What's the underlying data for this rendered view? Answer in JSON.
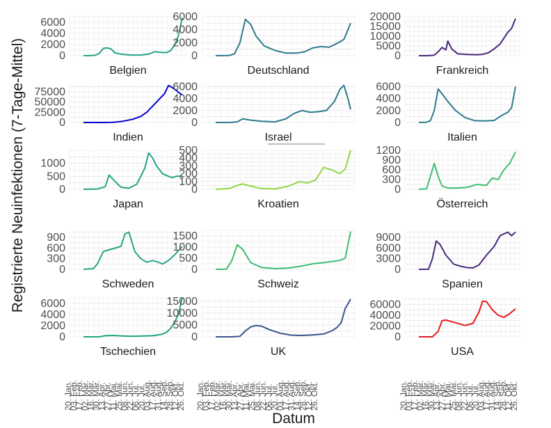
{
  "ylabel": "Registrierte Neuinfektionen (7-Tage-Mittel)",
  "xlabel": "Datum",
  "date_ticks": [
    "20. Jan.",
    "03. Feb.",
    "17. Feb.",
    "02. Mär.",
    "16. Mär.",
    "30. Mär.",
    "13. Apr.",
    "27. Apr.",
    "11. Mai.",
    "25. Mai.",
    "08. Jun.",
    "22. Jun.",
    "06. Jul.",
    "20. Jul.",
    "03. Aug.",
    "17. Aug.",
    "31. Aug.",
    "14. Sep.",
    "28. Sep.",
    "12. Okt.",
    "26. Okt."
  ],
  "chart_data": [
    {
      "type": "line",
      "title": "Belgien",
      "color": "#25a386",
      "ylim": [
        0,
        7000
      ],
      "yticks": [
        0,
        2000,
        4000,
        6000
      ],
      "ytick_labels": [
        "0",
        "2000",
        "4000",
        "6000"
      ],
      "x": [
        0,
        0.06,
        0.12,
        0.16,
        0.2,
        0.24,
        0.28,
        0.32,
        0.36,
        0.42,
        0.5,
        0.58,
        0.66,
        0.72,
        0.78,
        0.84,
        0.88,
        0.92,
        0.96,
        1.0
      ],
      "y": [
        0,
        0,
        80,
        400,
        1300,
        1400,
        1200,
        500,
        350,
        200,
        100,
        120,
        300,
        700,
        600,
        550,
        900,
        1800,
        3500,
        6800
      ]
    },
    {
      "type": "line",
      "title": "Deutschland",
      "color": "#2c7a8a",
      "ylim": [
        0,
        6000
      ],
      "yticks": [
        0,
        2000,
        4000,
        6000
      ],
      "ytick_labels": [
        "0",
        "2000",
        "4000",
        "6000"
      ],
      "x": [
        0,
        0.1,
        0.14,
        0.18,
        0.22,
        0.26,
        0.3,
        0.36,
        0.44,
        0.52,
        0.6,
        0.66,
        0.72,
        0.78,
        0.84,
        0.9,
        0.95,
        1.0
      ],
      "y": [
        0,
        20,
        300,
        2000,
        5600,
        4800,
        3000,
        1500,
        800,
        400,
        400,
        600,
        1200,
        1400,
        1300,
        1900,
        2500,
        5000
      ]
    },
    {
      "type": "line",
      "title": "Frankreich",
      "color": "#482878",
      "ylim": [
        0,
        20000
      ],
      "yticks": [
        0,
        5000,
        10000,
        15000,
        20000
      ],
      "ytick_labels": [
        "0",
        "5000",
        "10000",
        "15000",
        "20000"
      ],
      "x": [
        0,
        0.1,
        0.16,
        0.2,
        0.24,
        0.28,
        0.3,
        0.34,
        0.4,
        0.5,
        0.6,
        0.66,
        0.72,
        0.78,
        0.84,
        0.88,
        0.92,
        0.96,
        1.0
      ],
      "y": [
        0,
        0,
        300,
        2000,
        4200,
        3000,
        7500,
        3500,
        1000,
        600,
        500,
        700,
        1500,
        3500,
        6000,
        9000,
        12000,
        14000,
        19000
      ]
    },
    {
      "type": "line",
      "title": "Indien",
      "color": "#0000cd",
      "ylim": [
        0,
        95000
      ],
      "yticks": [
        0,
        25000,
        50000,
        75000
      ],
      "ytick_labels": [
        "0",
        "25000",
        "50000",
        "75000"
      ],
      "x": [
        0,
        0.2,
        0.3,
        0.4,
        0.5,
        0.58,
        0.64,
        0.7,
        0.76,
        0.82,
        0.86,
        0.9,
        0.94,
        0.97,
        1.0
      ],
      "y": [
        0,
        0,
        500,
        3000,
        8000,
        15000,
        25000,
        40000,
        55000,
        70000,
        90000,
        85000,
        78000,
        72000,
        67000
      ]
    },
    {
      "type": "line",
      "title": "Israel",
      "color": "#2c7a8a",
      "ylim": [
        0,
        6500
      ],
      "yticks": [
        0,
        2000,
        4000,
        6000
      ],
      "ytick_labels": [
        "0",
        "2000",
        "4000",
        "6000"
      ],
      "x": [
        0,
        0.1,
        0.16,
        0.2,
        0.26,
        0.34,
        0.44,
        0.52,
        0.58,
        0.64,
        0.7,
        0.76,
        0.82,
        0.88,
        0.92,
        0.95,
        0.98,
        1.0
      ],
      "y": [
        0,
        0,
        100,
        600,
        400,
        200,
        100,
        600,
        1500,
        2000,
        1700,
        1800,
        2000,
        3500,
        5500,
        6200,
        4000,
        2200
      ]
    },
    {
      "type": "line",
      "title": "Italien",
      "color": "#2c7a8a",
      "ylim": [
        0,
        6500
      ],
      "yticks": [
        0,
        2000,
        4000,
        6000
      ],
      "ytick_labels": [
        "0",
        "2000",
        "4000",
        "6000"
      ],
      "x": [
        0,
        0.08,
        0.12,
        0.16,
        0.2,
        0.24,
        0.3,
        0.38,
        0.48,
        0.58,
        0.68,
        0.78,
        0.86,
        0.92,
        0.96,
        1.0
      ],
      "y": [
        0,
        50,
        300,
        2000,
        5600,
        4800,
        3500,
        2000,
        800,
        300,
        250,
        350,
        1200,
        1700,
        2500,
        6000
      ]
    },
    {
      "type": "line",
      "title": "Japan",
      "color": "#25a386",
      "ylim": [
        0,
        1500
      ],
      "yticks": [
        0,
        500,
        1000
      ],
      "ytick_labels": [
        "0",
        "500",
        "1000"
      ],
      "x": [
        0,
        0.14,
        0.22,
        0.26,
        0.32,
        0.38,
        0.46,
        0.54,
        0.62,
        0.66,
        0.7,
        0.74,
        0.8,
        0.86,
        0.9,
        0.94,
        1.0
      ],
      "y": [
        0,
        10,
        100,
        550,
        300,
        80,
        40,
        200,
        800,
        1400,
        1200,
        900,
        600,
        500,
        450,
        500,
        500
      ]
    },
    {
      "type": "line",
      "title": "Kroatien",
      "color": "#8fd744",
      "ylim": [
        0,
        500
      ],
      "yticks": [
        0,
        100,
        200,
        300,
        400,
        500
      ],
      "ytick_labels": [
        "0",
        "100",
        "200",
        "300",
        "400",
        "500"
      ],
      "x": [
        0,
        0.1,
        0.16,
        0.2,
        0.26,
        0.34,
        0.44,
        0.54,
        0.62,
        0.68,
        0.74,
        0.8,
        0.86,
        0.92,
        0.96,
        1.0
      ],
      "y": [
        0,
        10,
        50,
        70,
        40,
        10,
        5,
        40,
        100,
        80,
        120,
        280,
        250,
        200,
        260,
        500
      ]
    },
    {
      "type": "line",
      "title": "Österreich",
      "color": "#3fbc73",
      "ylim": [
        0,
        1200
      ],
      "yticks": [
        0,
        300,
        600,
        900,
        1200
      ],
      "ytick_labels": [
        "0",
        "300",
        "600",
        "900",
        "1200"
      ],
      "x": [
        0,
        0.08,
        0.12,
        0.16,
        0.2,
        0.24,
        0.3,
        0.4,
        0.5,
        0.6,
        0.7,
        0.76,
        0.82,
        0.88,
        0.94,
        1.0
      ],
      "y": [
        0,
        10,
        400,
        800,
        400,
        100,
        40,
        40,
        60,
        150,
        120,
        350,
        300,
        600,
        800,
        1150
      ]
    },
    {
      "type": "line",
      "title": "Schweden",
      "color": "#25a386",
      "ylim": [
        0,
        1100
      ],
      "yticks": [
        0,
        300,
        600,
        900
      ],
      "ytick_labels": [
        "0",
        "300",
        "600",
        "900"
      ],
      "x": [
        0,
        0.1,
        0.14,
        0.2,
        0.26,
        0.32,
        0.38,
        0.42,
        0.46,
        0.52,
        0.58,
        0.64,
        0.7,
        0.76,
        0.8,
        0.86,
        0.92,
        1.0
      ],
      "y": [
        0,
        20,
        150,
        500,
        550,
        600,
        650,
        1000,
        1050,
        500,
        300,
        200,
        250,
        200,
        150,
        250,
        400,
        650
      ]
    },
    {
      "type": "line",
      "title": "Schweiz",
      "color": "#3fbc73",
      "ylim": [
        0,
        1750
      ],
      "yticks": [
        0,
        500,
        1000,
        1500
      ],
      "ytick_labels": [
        "0",
        "500",
        "1000",
        "1500"
      ],
      "x": [
        0,
        0.08,
        0.12,
        0.16,
        0.2,
        0.26,
        0.34,
        0.44,
        0.54,
        0.64,
        0.72,
        0.8,
        0.86,
        0.92,
        0.96,
        1.0
      ],
      "y": [
        0,
        10,
        400,
        1100,
        900,
        300,
        80,
        30,
        60,
        150,
        250,
        300,
        350,
        400,
        500,
        1700
      ]
    },
    {
      "type": "line",
      "title": "Spanien",
      "color": "#482878",
      "ylim": [
        0,
        11000
      ],
      "yticks": [
        0,
        3000,
        6000,
        9000
      ],
      "ytick_labels": [
        "0",
        "3000",
        "6000",
        "9000"
      ],
      "x": [
        0,
        0.1,
        0.14,
        0.18,
        0.22,
        0.28,
        0.36,
        0.44,
        0.5,
        0.56,
        0.62,
        0.7,
        0.78,
        0.84,
        0.88,
        0.92,
        0.96,
        1.0
      ],
      "y": [
        0,
        20,
        3000,
        8000,
        7000,
        4000,
        1500,
        800,
        500,
        400,
        1200,
        4000,
        6500,
        9500,
        10000,
        10500,
        9500,
        10500
      ]
    },
    {
      "type": "line",
      "title": "Tschechien",
      "color": "#25a386",
      "ylim": [
        0,
        7000
      ],
      "yticks": [
        0,
        2000,
        4000,
        6000
      ],
      "ytick_labels": [
        "0",
        "2000",
        "4000",
        "6000"
      ],
      "x": [
        0,
        0.16,
        0.22,
        0.3,
        0.4,
        0.5,
        0.6,
        0.7,
        0.78,
        0.84,
        0.88,
        0.92,
        0.96,
        1.0
      ],
      "y": [
        0,
        0,
        200,
        250,
        150,
        100,
        150,
        200,
        400,
        800,
        1500,
        2500,
        4000,
        7000
      ]
    },
    {
      "type": "line",
      "title": "UK",
      "color": "#3b528b",
      "ylim": [
        0,
        16500
      ],
      "yticks": [
        0,
        5000,
        10000,
        15000
      ],
      "ytick_labels": [
        "0",
        "5000",
        "10000",
        "15000"
      ],
      "x": [
        0,
        0.12,
        0.18,
        0.22,
        0.26,
        0.3,
        0.34,
        0.4,
        0.48,
        0.56,
        0.64,
        0.72,
        0.8,
        0.86,
        0.9,
        0.93,
        0.96,
        1.0
      ],
      "y": [
        0,
        0,
        200,
        2500,
        4200,
        4800,
        4500,
        3000,
        1500,
        700,
        600,
        800,
        1200,
        2500,
        4000,
        6000,
        12000,
        16000
      ]
    },
    {
      "type": "line",
      "title": "USA",
      "color": "#e41a1c",
      "ylim": [
        0,
        72000
      ],
      "yticks": [
        0,
        20000,
        40000,
        60000
      ],
      "ytick_labels": [
        "0",
        "20000",
        "40000",
        "60000"
      ],
      "x": [
        0,
        0.14,
        0.2,
        0.24,
        0.28,
        0.34,
        0.4,
        0.48,
        0.56,
        0.62,
        0.66,
        0.7,
        0.76,
        0.82,
        0.88,
        0.94,
        1.0
      ],
      "y": [
        0,
        0,
        10000,
        30000,
        31000,
        28000,
        25000,
        21000,
        25000,
        45000,
        66000,
        65000,
        50000,
        40000,
        36000,
        43000,
        52000
      ]
    }
  ]
}
